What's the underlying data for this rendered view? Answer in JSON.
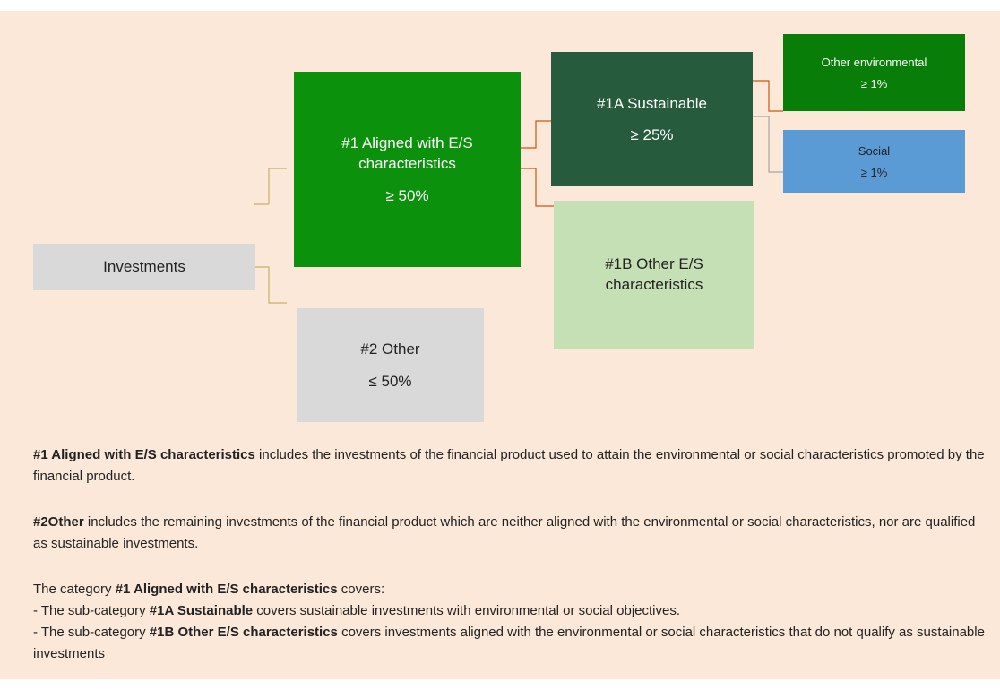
{
  "nodes": [
    {
      "label": "Investments"
    },
    {
      "label": "#1 Aligned with E/S characteristics",
      "share": "≥ 50%"
    },
    {
      "label": "#2 Other",
      "share": "≤ 50%"
    },
    {
      "label": "#1A Sustainable",
      "share": "≥ 25%"
    },
    {
      "label": "#1B Other E/S characteristics"
    },
    {
      "label": "Other environmental",
      "share": "≥ 1%"
    },
    {
      "label": "Social",
      "share": "≥ 1%"
    }
  ],
  "notes": [
    [
      [
        {
          "text": "#1 Aligned with E/S characteristics",
          "bold": true
        },
        {
          "text": " includes the investments of the financial product used to attain the environmental or social characteristics promoted by the financial product."
        }
      ]
    ],
    [
      [
        {
          "text": "#2Other",
          "bold": true
        },
        {
          "text": " includes the remaining investments of the financial product which are neither aligned with the environmental or social characteristics, nor are qualified as sustainable investments."
        }
      ]
    ],
    [
      [
        {
          "text": "The category "
        },
        {
          "text": "#1 Aligned with E/S characteristics",
          "bold": true
        },
        {
          "text": " covers:"
        }
      ],
      [
        {
          "text": "- The sub-category "
        },
        {
          "text": "#1A Sustainable",
          "bold": true
        },
        {
          "text": " covers sustainable investments with environmental or social objectives."
        }
      ],
      [
        {
          "text": "- The sub-category "
        },
        {
          "text": "#1B Other E/S characteristics",
          "bold": true
        },
        {
          "text": " covers investments aligned with the environmental or social characteristics that do not qualify as sustainable investments"
        }
      ]
    ]
  ]
}
